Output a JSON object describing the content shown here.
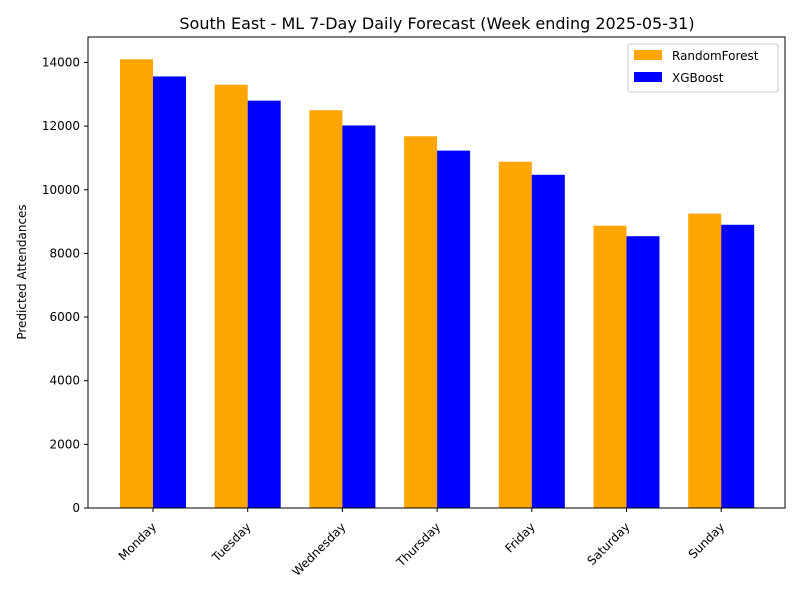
{
  "chart_data": {
    "type": "bar",
    "title": "South East - ML 7-Day Daily Forecast (Week ending 2025-05-31)",
    "xlabel": "",
    "ylabel": "Predicted Attendances",
    "categories": [
      "Monday",
      "Tuesday",
      "Wednesday",
      "Thursday",
      "Friday",
      "Saturday",
      "Sunday"
    ],
    "series": [
      {
        "name": "RandomForest",
        "color": "#ffa500",
        "values": [
          14100,
          13300,
          12500,
          11680,
          10880,
          8870,
          9250
        ]
      },
      {
        "name": "XGBoost",
        "color": "#0000ff",
        "values": [
          13560,
          12800,
          12020,
          11230,
          10470,
          8540,
          8900
        ]
      }
    ],
    "ylim": [
      0,
      14800
    ],
    "yticks": [
      0,
      2000,
      4000,
      6000,
      8000,
      10000,
      12000,
      14000
    ],
    "grid": false,
    "legend_position": "top-right"
  }
}
